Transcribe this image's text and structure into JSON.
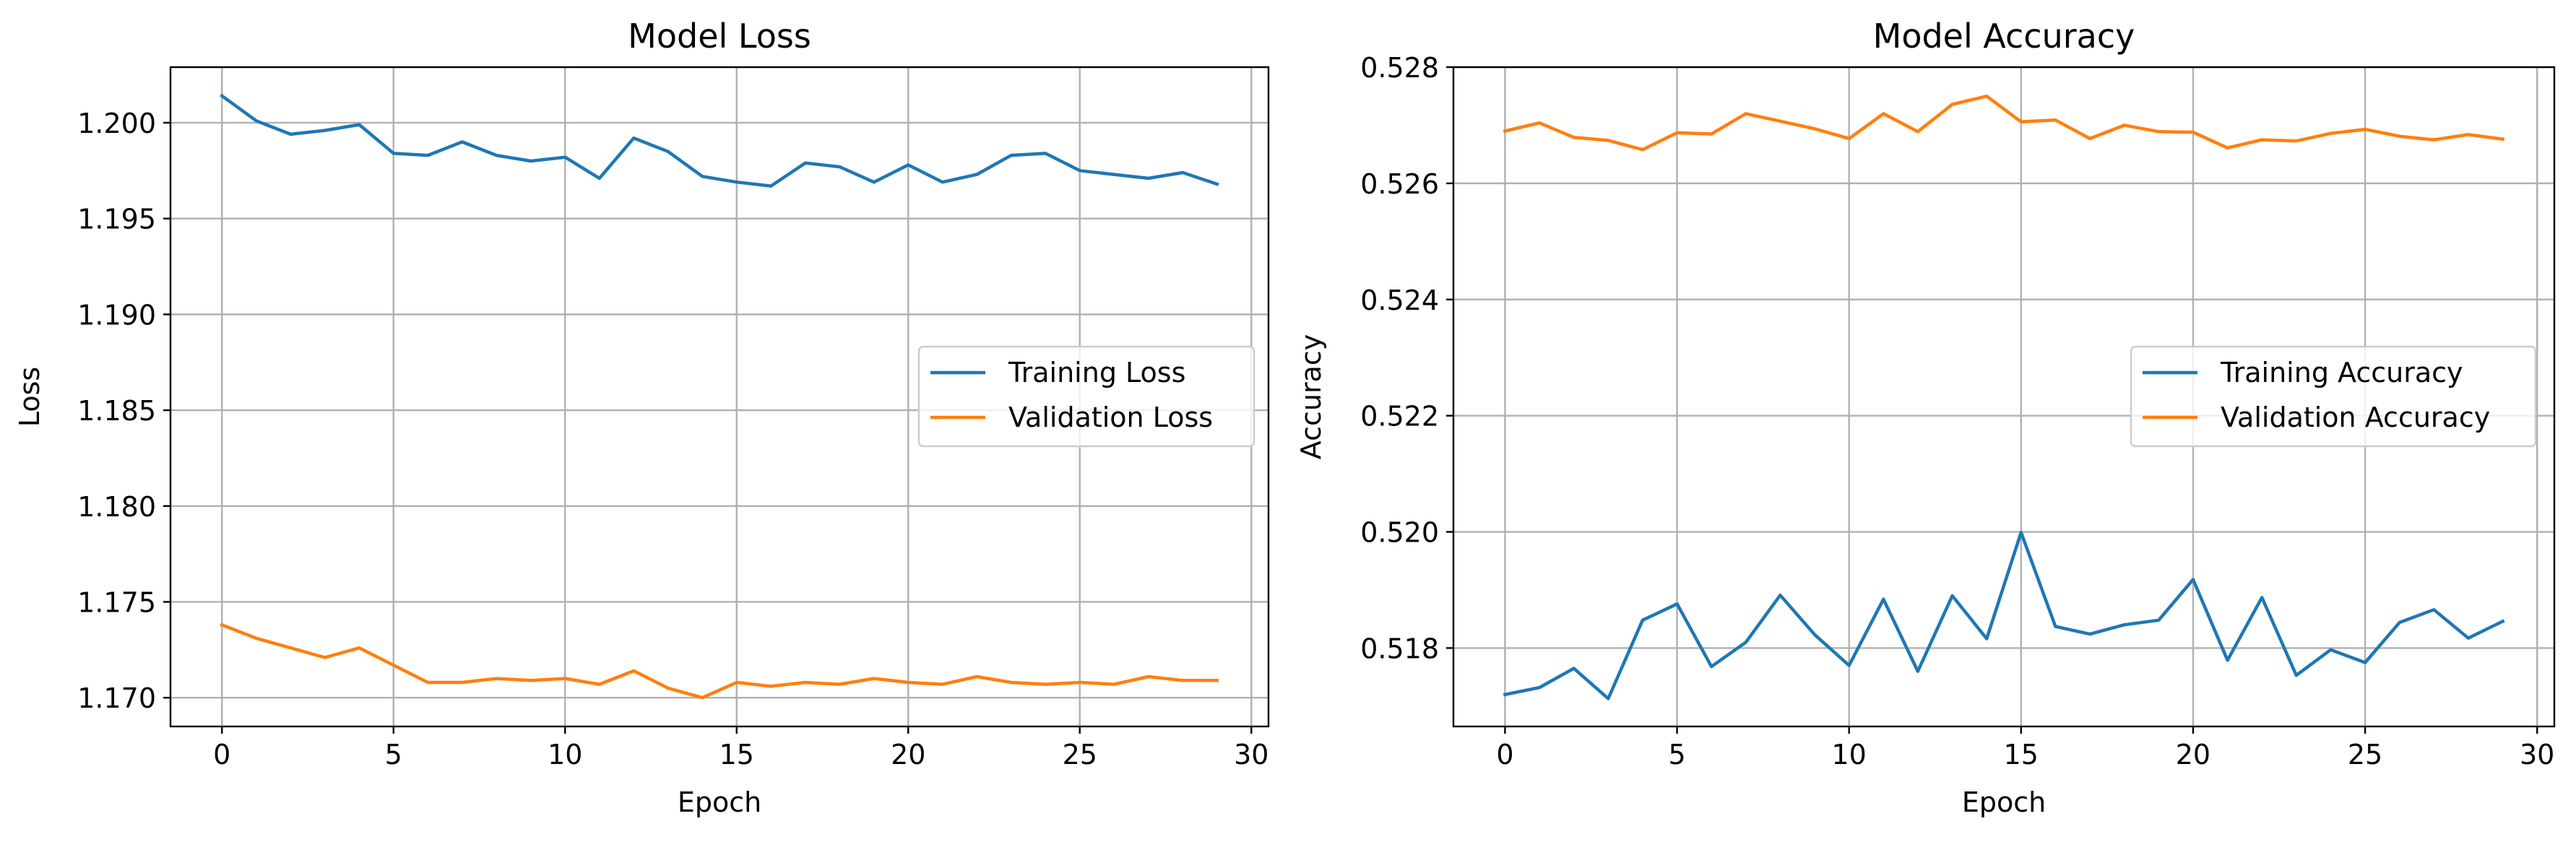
{
  "chart_data": [
    {
      "type": "line",
      "title": "Model Loss",
      "xlabel": "Epoch",
      "ylabel": "Loss",
      "xlim": [
        -1.5,
        30.5
      ],
      "ylim": [
        1.1685,
        1.2029
      ],
      "xticks": [
        0,
        5,
        10,
        15,
        20,
        25,
        30
      ],
      "xtick_labels": [
        "0",
        "5",
        "10",
        "15",
        "20",
        "25",
        "30"
      ],
      "yticks": [
        1.17,
        1.175,
        1.18,
        1.185,
        1.19,
        1.195,
        1.2
      ],
      "ytick_labels": [
        "1.170",
        "1.175",
        "1.180",
        "1.185",
        "1.190",
        "1.195",
        "1.200"
      ],
      "grid": true,
      "legend_position": "center-right",
      "x": [
        0,
        1,
        2,
        3,
        4,
        5,
        6,
        7,
        8,
        9,
        10,
        11,
        12,
        13,
        14,
        15,
        16,
        17,
        18,
        19,
        20,
        21,
        22,
        23,
        24,
        25,
        26,
        27,
        28,
        29
      ],
      "series": [
        {
          "name": "Training Loss",
          "color": "#1f77b4",
          "values": [
            1.2014,
            1.2001,
            1.1994,
            1.1996,
            1.1999,
            1.1984,
            1.1983,
            1.199,
            1.1983,
            1.198,
            1.1982,
            1.1971,
            1.1992,
            1.1985,
            1.1972,
            1.1969,
            1.1967,
            1.1979,
            1.1977,
            1.1969,
            1.1978,
            1.1969,
            1.1973,
            1.1983,
            1.1984,
            1.1975,
            1.1973,
            1.1971,
            1.1974,
            1.1968
          ]
        },
        {
          "name": "Validation Loss",
          "color": "#ff7f0e",
          "values": [
            1.1738,
            1.1731,
            1.1726,
            1.1721,
            1.1726,
            1.1717,
            1.1708,
            1.1708,
            1.171,
            1.1709,
            1.171,
            1.1707,
            1.1714,
            1.1705,
            1.17,
            1.1708,
            1.1706,
            1.1708,
            1.1707,
            1.171,
            1.1708,
            1.1707,
            1.1711,
            1.1708,
            1.1707,
            1.1708,
            1.1707,
            1.1711,
            1.1709,
            1.1709
          ]
        }
      ]
    },
    {
      "type": "line",
      "title": "Model Accuracy",
      "xlabel": "Epoch",
      "ylabel": "Accuracy",
      "xlim": [
        -1.5,
        30.5
      ],
      "ylim": [
        0.51665,
        0.528
      ],
      "xticks": [
        0,
        5,
        10,
        15,
        20,
        25,
        30
      ],
      "xtick_labels": [
        "0",
        "5",
        "10",
        "15",
        "20",
        "25",
        "30"
      ],
      "yticks": [
        0.518,
        0.52,
        0.522,
        0.524,
        0.526,
        0.528
      ],
      "ytick_labels": [
        "0.518",
        "0.520",
        "0.522",
        "0.524",
        "0.526",
        "0.528"
      ],
      "grid": true,
      "legend_position": "center-right",
      "x": [
        0,
        1,
        2,
        3,
        4,
        5,
        6,
        7,
        8,
        9,
        10,
        11,
        12,
        13,
        14,
        15,
        16,
        17,
        18,
        19,
        20,
        21,
        22,
        23,
        24,
        25,
        26,
        27,
        28,
        29
      ],
      "series": [
        {
          "name": "Training Accuracy",
          "color": "#1f77b4",
          "values": [
            0.5172,
            0.51732,
            0.51765,
            0.51713,
            0.51848,
            0.51876,
            0.51768,
            0.5181,
            0.51891,
            0.51823,
            0.5177,
            0.51884,
            0.5176,
            0.5189,
            0.51816,
            0.51999,
            0.51837,
            0.51824,
            0.5184,
            0.51848,
            0.51918,
            0.51779,
            0.51887,
            0.51753,
            0.51797,
            0.51775,
            0.51844,
            0.51866,
            0.51817,
            0.51846
          ]
        },
        {
          "name": "Validation Accuracy",
          "color": "#ff7f0e",
          "values": [
            0.5269,
            0.52704,
            0.52679,
            0.52674,
            0.52658,
            0.52687,
            0.52685,
            0.5272,
            0.52707,
            0.52694,
            0.52677,
            0.5272,
            0.52689,
            0.52736,
            0.5275,
            0.52706,
            0.52709,
            0.52677,
            0.527,
            0.52689,
            0.52688,
            0.52661,
            0.52675,
            0.52673,
            0.52686,
            0.52693,
            0.52681,
            0.52675,
            0.52684,
            0.52676
          ]
        }
      ]
    }
  ]
}
